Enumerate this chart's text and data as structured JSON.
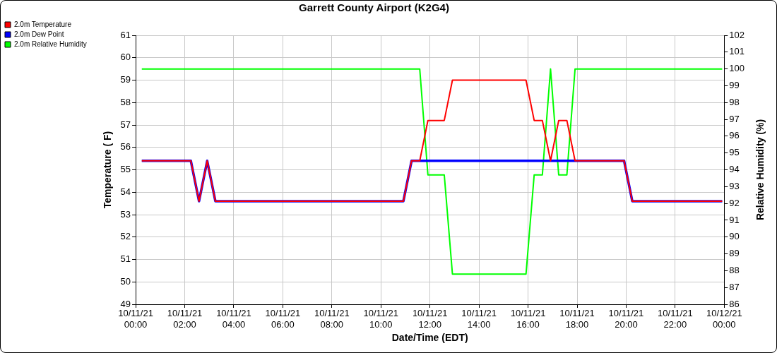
{
  "chart_data": {
    "type": "line",
    "title": "Garrett County Airport (K2G4)",
    "xlabel": "Date/Time (EDT)",
    "ylabel": "Temperature ( F)",
    "y2label": "Relative Humidity (%)",
    "x": [
      "--10-11T00:15",
      "--10-11T02:15",
      "--10-11T02:35",
      "--10-11T02:55",
      "--10-11T03:15",
      "--10-11T10:55",
      "--10-11T11:15",
      "--10-11T11:35",
      "--10-11T11:55",
      "--10-11T12:35",
      "--10-11T12:55",
      "--10-11T15:55",
      "--10-11T16:15",
      "--10-11T16:35",
      "--10-11T16:55",
      "--10-11T17:15",
      "--10-11T17:35",
      "--10-11T17:55",
      "--10-11T19:55",
      "--10-11T20:15",
      "--10-11T23:55"
    ],
    "series": [
      {
        "name": "2.0m Temperature",
        "color": "#ff0000",
        "values": [
          55.4,
          55.4,
          53.6,
          55.4,
          53.6,
          53.6,
          55.4,
          55.4,
          57.2,
          57.2,
          59.0,
          59.0,
          57.2,
          57.2,
          55.4,
          57.2,
          57.2,
          55.4,
          55.4,
          53.6,
          53.6
        ]
      },
      {
        "name": "2.0m Dew Point",
        "color": "#0000ff",
        "values": [
          55.4,
          55.4,
          53.6,
          55.4,
          53.6,
          53.6,
          55.4,
          55.4,
          55.4,
          55.4,
          55.4,
          55.4,
          55.4,
          55.4,
          55.4,
          55.4,
          55.4,
          55.4,
          55.4,
          53.6,
          53.6
        ]
      },
      {
        "name": "2.0m Relative Humidity",
        "color": "#00ff00",
        "axis": "y2",
        "values": [
          100,
          100,
          100,
          100,
          100,
          100,
          100,
          100,
          93.7,
          93.7,
          87.8,
          87.8,
          93.7,
          93.7,
          100,
          93.7,
          93.7,
          100,
          100,
          100,
          100
        ]
      }
    ],
    "xlim": [
      "--10-11T00:00",
      "--10-12T00:00"
    ],
    "xticks": [
      {
        "value": "--10-11T00:00",
        "label": "10/11/21 00:00"
      },
      {
        "value": "--10-11T02:00",
        "label": "10/11/21 02:00"
      },
      {
        "value": "--10-11T04:00",
        "label": "10/11/21 04:00"
      },
      {
        "value": "--10-11T06:00",
        "label": "10/11/21 06:00"
      },
      {
        "value": "--10-11T08:00",
        "label": "10/11/21 08:00"
      },
      {
        "value": "--10-11T10:00",
        "label": "10/11/21 10:00"
      },
      {
        "value": "--10-11T12:00",
        "label": "10/11/21 12:00"
      },
      {
        "value": "--10-11T14:00",
        "label": "10/11/21 14:00"
      },
      {
        "value": "--10-11T16:00",
        "label": "10/11/21 16:00"
      },
      {
        "value": "--10-11T18:00",
        "label": "10/11/21 18:00"
      },
      {
        "value": "--10-11T20:00",
        "label": "10/11/21 20:00"
      },
      {
        "value": "--10-11T22:00",
        "label": "10/11/21 22:00"
      },
      {
        "value": "--10-12T00:00",
        "label": "10/12/21 00:00"
      }
    ],
    "ylim": [
      49,
      61
    ],
    "yticks": [
      49,
      50,
      51,
      52,
      53,
      54,
      55,
      56,
      57,
      58,
      59,
      60,
      61
    ],
    "y2lim": [
      86,
      102
    ],
    "y2ticks": [
      86,
      87,
      88,
      89,
      90,
      91,
      92,
      93,
      94,
      95,
      96,
      97,
      98,
      99,
      100,
      101,
      102
    ],
    "grid": true,
    "legend": "top left"
  }
}
